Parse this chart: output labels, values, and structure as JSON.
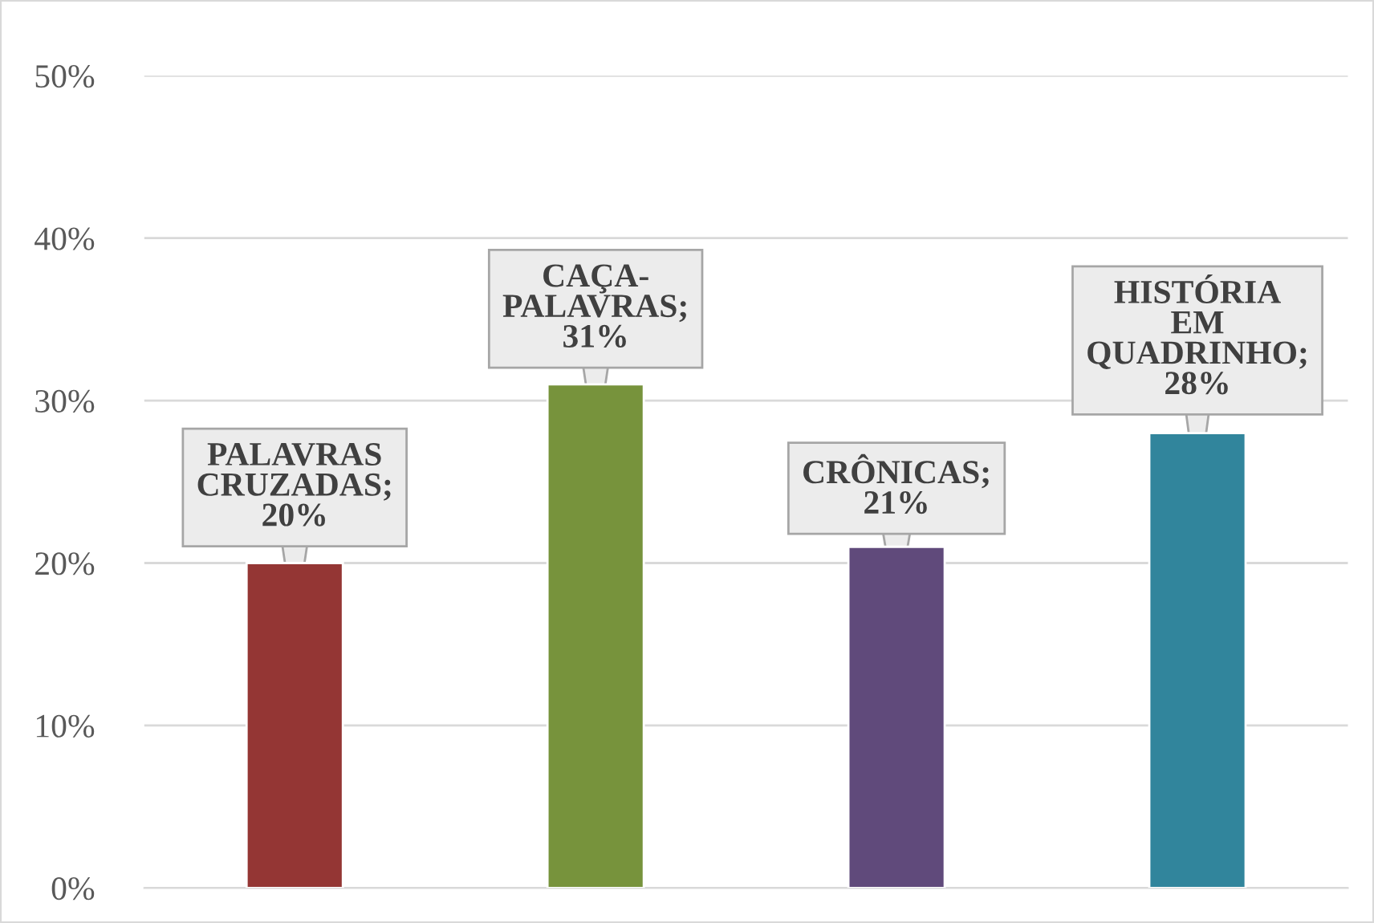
{
  "chart_data": {
    "type": "bar",
    "categories": [
      null,
      null,
      null,
      null
    ],
    "values": [
      20,
      31,
      21,
      28
    ],
    "colors": [
      "#943634",
      "#77933c",
      "#604a7b",
      "#31859c"
    ],
    "value_labels": [
      "PALAVRAS CRUZADAS; 20%",
      "CAÇA-PALAVRAS; 31%",
      "CRÔNICAS; 21%",
      "HISTÓRIA EM QUADRINHO; 28%"
    ],
    "ylim": [
      0,
      50
    ],
    "yticks": [
      {
        "value": 0,
        "label": "0%"
      },
      {
        "value": 10,
        "label": "10%"
      },
      {
        "value": 20,
        "label": "20%"
      },
      {
        "value": 30,
        "label": "30%"
      },
      {
        "value": 40,
        "label": "40%"
      },
      {
        "value": 50,
        "label": "50%"
      }
    ],
    "grid": "y"
  }
}
